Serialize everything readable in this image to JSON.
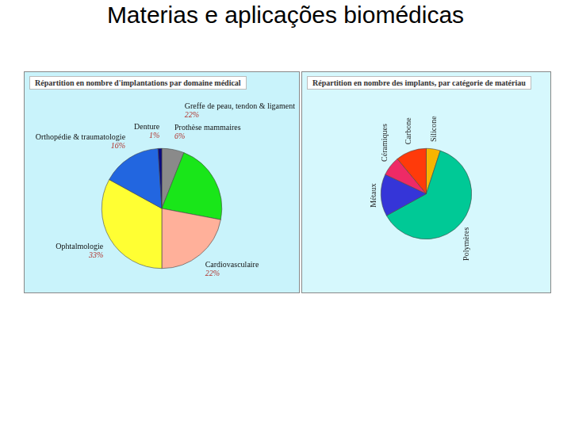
{
  "title": "Materias e aplicações biomédicas",
  "chart_data": [
    {
      "type": "pie",
      "title": "Répartition en nombre d'implantations par domaine médical",
      "categories": [
        "Prothèse mammaires",
        "Greffe de peau, tendon & ligament",
        "Cardiovasculaire",
        "Ophtalmologie",
        "Orthopédie & traumatologie",
        "Denture"
      ],
      "values": [
        6,
        22,
        22,
        33,
        16,
        1
      ],
      "value_labels": [
        "6%",
        "22%",
        "22%",
        "33%",
        "16%",
        "1%"
      ],
      "colors": [
        "#8a8a8a",
        "#19e619",
        "#ffb09a",
        "#ffff33",
        "#2266e0",
        "#0a0a80"
      ],
      "data_labels": true
    },
    {
      "type": "pie",
      "title": "Répartition en nombre des implants, par catégorie de matériau",
      "categories": [
        "Silicone",
        "Polymères",
        "Métaux",
        "Céramiques",
        "Carbone"
      ],
      "values": [
        5,
        62,
        15,
        7,
        11
      ],
      "colors": [
        "#f7b500",
        "#00c996",
        "#3535d8",
        "#ee2a66",
        "#ff3a0a"
      ],
      "data_labels": false
    }
  ]
}
